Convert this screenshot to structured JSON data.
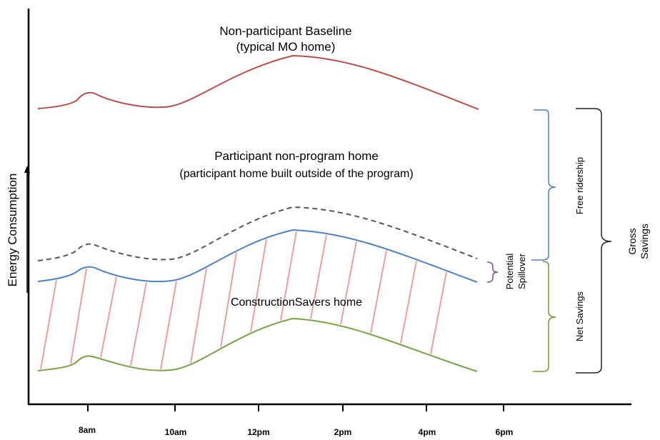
{
  "y_axis_label": "Energy Consumption",
  "x_ticks": [
    "8am",
    "10am",
    "12pm",
    "2pm",
    "4pm",
    "6pm"
  ],
  "curves": {
    "baseline": {
      "title_line1": "Non-participant Baseline",
      "title_line2": "(typical MO home)",
      "color": "#b5514d"
    },
    "nonprogram": {
      "title_line1": "Participant non-program home",
      "title_line2": "(participant home built outside of the program)",
      "color": "#555555"
    },
    "program": {
      "color": "#4f81bd"
    },
    "construction": {
      "title": "ConstructionSavers home",
      "color": "#7aa14a"
    }
  },
  "hatch_color": "#e8a0a0",
  "brackets": {
    "potential_spillover": {
      "line1": "Potential",
      "line2": "Spillover",
      "color": "#7a4f96"
    },
    "free_ridership": {
      "label": "Free ridership",
      "color": "#4f81bd"
    },
    "net_savings": {
      "label": "Net Savings",
      "color": "#77933c"
    },
    "gross_savings": {
      "line1": "Gross",
      "line2": "Savings",
      "color": "#222222"
    }
  }
}
